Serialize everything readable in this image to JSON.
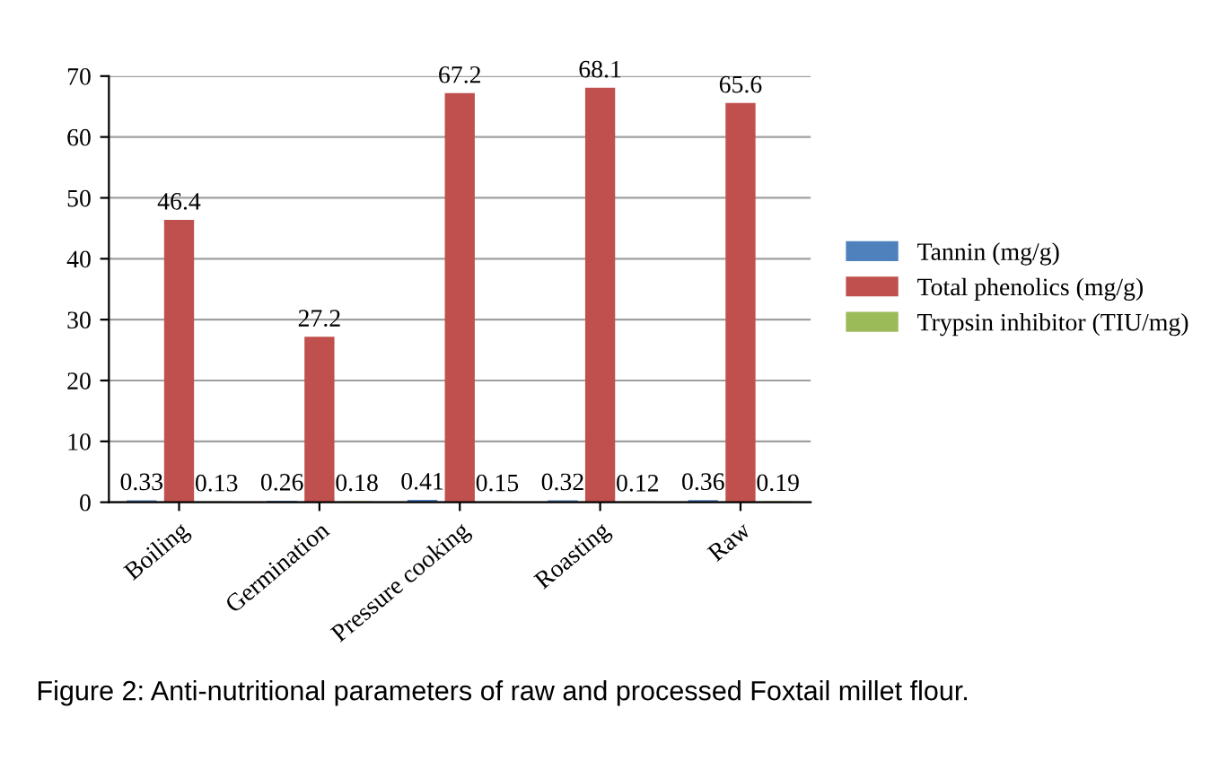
{
  "chart_data": {
    "type": "bar",
    "categories": [
      "Boiling",
      "Germination",
      "Pressure cooking",
      "Roasting",
      "Raw"
    ],
    "series": [
      {
        "name": "Tannin (mg/g)",
        "color": "#4f81bd",
        "values": [
          0.33,
          0.26,
          0.41,
          0.32,
          0.36
        ]
      },
      {
        "name": "Total phenolics (mg/g)",
        "color": "#c0504d",
        "values": [
          46.4,
          27.2,
          67.2,
          68.1,
          65.6
        ]
      },
      {
        "name": "Trypsin inhibitor (TIU/mg)",
        "color": "#9bbb59",
        "values": [
          0.13,
          0.18,
          0.15,
          0.12,
          0.19
        ]
      }
    ],
    "ylim": [
      0,
      70
    ],
    "yticks": [
      0,
      10,
      20,
      30,
      40,
      50,
      60,
      70
    ],
    "grid": "y",
    "legend": "right",
    "data_labels": true,
    "annotations": [
      "Figure 2: Anti-nutritional parameters of raw and processed Foxtail millet flour."
    ]
  }
}
